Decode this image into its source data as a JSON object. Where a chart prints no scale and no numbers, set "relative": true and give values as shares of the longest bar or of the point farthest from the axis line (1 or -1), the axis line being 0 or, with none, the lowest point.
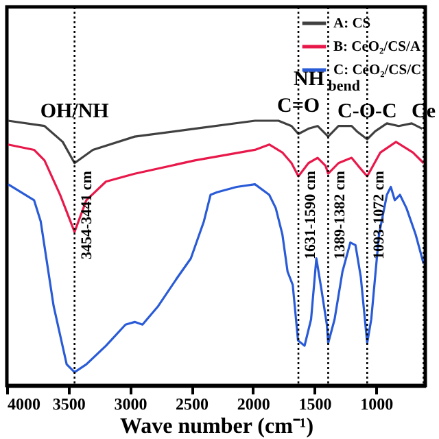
{
  "chart_data": {
    "type": "line",
    "relative": true,
    "xlabel": "Wave number (cm⁻¹)",
    "xlim": [
      4000,
      600
    ],
    "xticks": [
      4000,
      3500,
      3000,
      2500,
      2000,
      1500,
      1000
    ],
    "grid": false,
    "legend": "top right",
    "line_style": "solid",
    "marker": "none",
    "series": [
      {
        "name": "A: CS",
        "color": "#404040",
        "x": [
          3990,
          3694,
          3546,
          3450,
          3301,
          2961,
          2473,
          1984,
          1793,
          1687,
          1631,
          1549,
          1475,
          1389,
          1305,
          1199,
          1156,
          1072,
          1007,
          912,
          816,
          710,
          625
        ],
        "values": [
          1.0,
          0.98,
          0.92,
          0.84,
          0.89,
          0.94,
          0.97,
          1.0,
          1.0,
          0.98,
          0.95,
          0.97,
          0.98,
          0.94,
          0.98,
          0.98,
          0.96,
          0.93,
          0.96,
          0.99,
          0.98,
          0.99,
          0.97
        ]
      },
      {
        "name": "B: CeO₂/CS/A",
        "color": "#e8194a",
        "x": [
          3990,
          3779,
          3694,
          3567,
          3450,
          3354,
          3195,
          2961,
          2473,
          1984,
          1868,
          1761,
          1687,
          1631,
          1549,
          1475,
          1411,
          1389,
          1305,
          1199,
          1146,
          1072,
          965,
          838,
          700,
          614
        ],
        "values": [
          0.91,
          0.89,
          0.85,
          0.72,
          0.58,
          0.7,
          0.77,
          0.8,
          0.85,
          0.89,
          0.91,
          0.88,
          0.84,
          0.79,
          0.84,
          0.86,
          0.83,
          0.8,
          0.84,
          0.86,
          0.83,
          0.79,
          0.88,
          0.92,
          0.88,
          0.84
        ]
      },
      {
        "name": "C: CeO₂/CS/C",
        "color": "#2a5bd7",
        "x": [
          3990,
          3779,
          3725,
          3620,
          3514,
          3450,
          3354,
          3195,
          3036,
          2961,
          2898,
          2770,
          2611,
          2505,
          2399,
          2345,
          2292,
          2133,
          1984,
          1868,
          1815,
          1761,
          1719,
          1677,
          1634,
          1581,
          1528,
          1485,
          1443,
          1400,
          1389,
          1337,
          1273,
          1209,
          1167,
          1124,
          1072,
          1039,
          976,
          912,
          880,
          848,
          806,
          753,
          678,
          614
        ],
        "values": [
          0.76,
          0.7,
          0.62,
          0.3,
          0.08,
          0.05,
          0.08,
          0.15,
          0.23,
          0.24,
          0.23,
          0.3,
          0.41,
          0.48,
          0.62,
          0.72,
          0.73,
          0.75,
          0.76,
          0.72,
          0.67,
          0.57,
          0.43,
          0.38,
          0.17,
          0.15,
          0.25,
          0.48,
          0.36,
          0.23,
          0.16,
          0.25,
          0.43,
          0.54,
          0.53,
          0.41,
          0.16,
          0.25,
          0.57,
          0.72,
          0.75,
          0.7,
          0.72,
          0.67,
          0.57,
          0.46
        ]
      }
    ],
    "ref_lines": [
      {
        "axis": "x",
        "value": 3450,
        "label": "3454-3441 cm",
        "line_style": "dotted",
        "color": "#000000"
      },
      {
        "axis": "x",
        "value": 1631,
        "label": "1631-1590 cm",
        "line_style": "dotted",
        "color": "#000000"
      },
      {
        "axis": "x",
        "value": 1389,
        "label": "1389-1382 cm",
        "line_style": "dotted",
        "color": "#000000"
      },
      {
        "axis": "x",
        "value": 1072,
        "label": "1093-1072 cm",
        "line_style": "dotted",
        "color": "#000000"
      },
      {
        "axis": "x",
        "value": 614,
        "line_style": "dotted",
        "color": "#000000"
      }
    ],
    "annotations": [
      {
        "text": "OH/NH",
        "x": 3450,
        "y": 1.04
      },
      {
        "text": "C=O",
        "x": 1631,
        "y": 1.06
      },
      {
        "text": "NH$_{bend}$",
        "x": 1389,
        "y": 1.16
      },
      {
        "text": "C-O-C",
        "x": 1072,
        "y": 1.04
      },
      {
        "text": "Ce",
        "x": 614,
        "y": 1.04
      }
    ]
  }
}
